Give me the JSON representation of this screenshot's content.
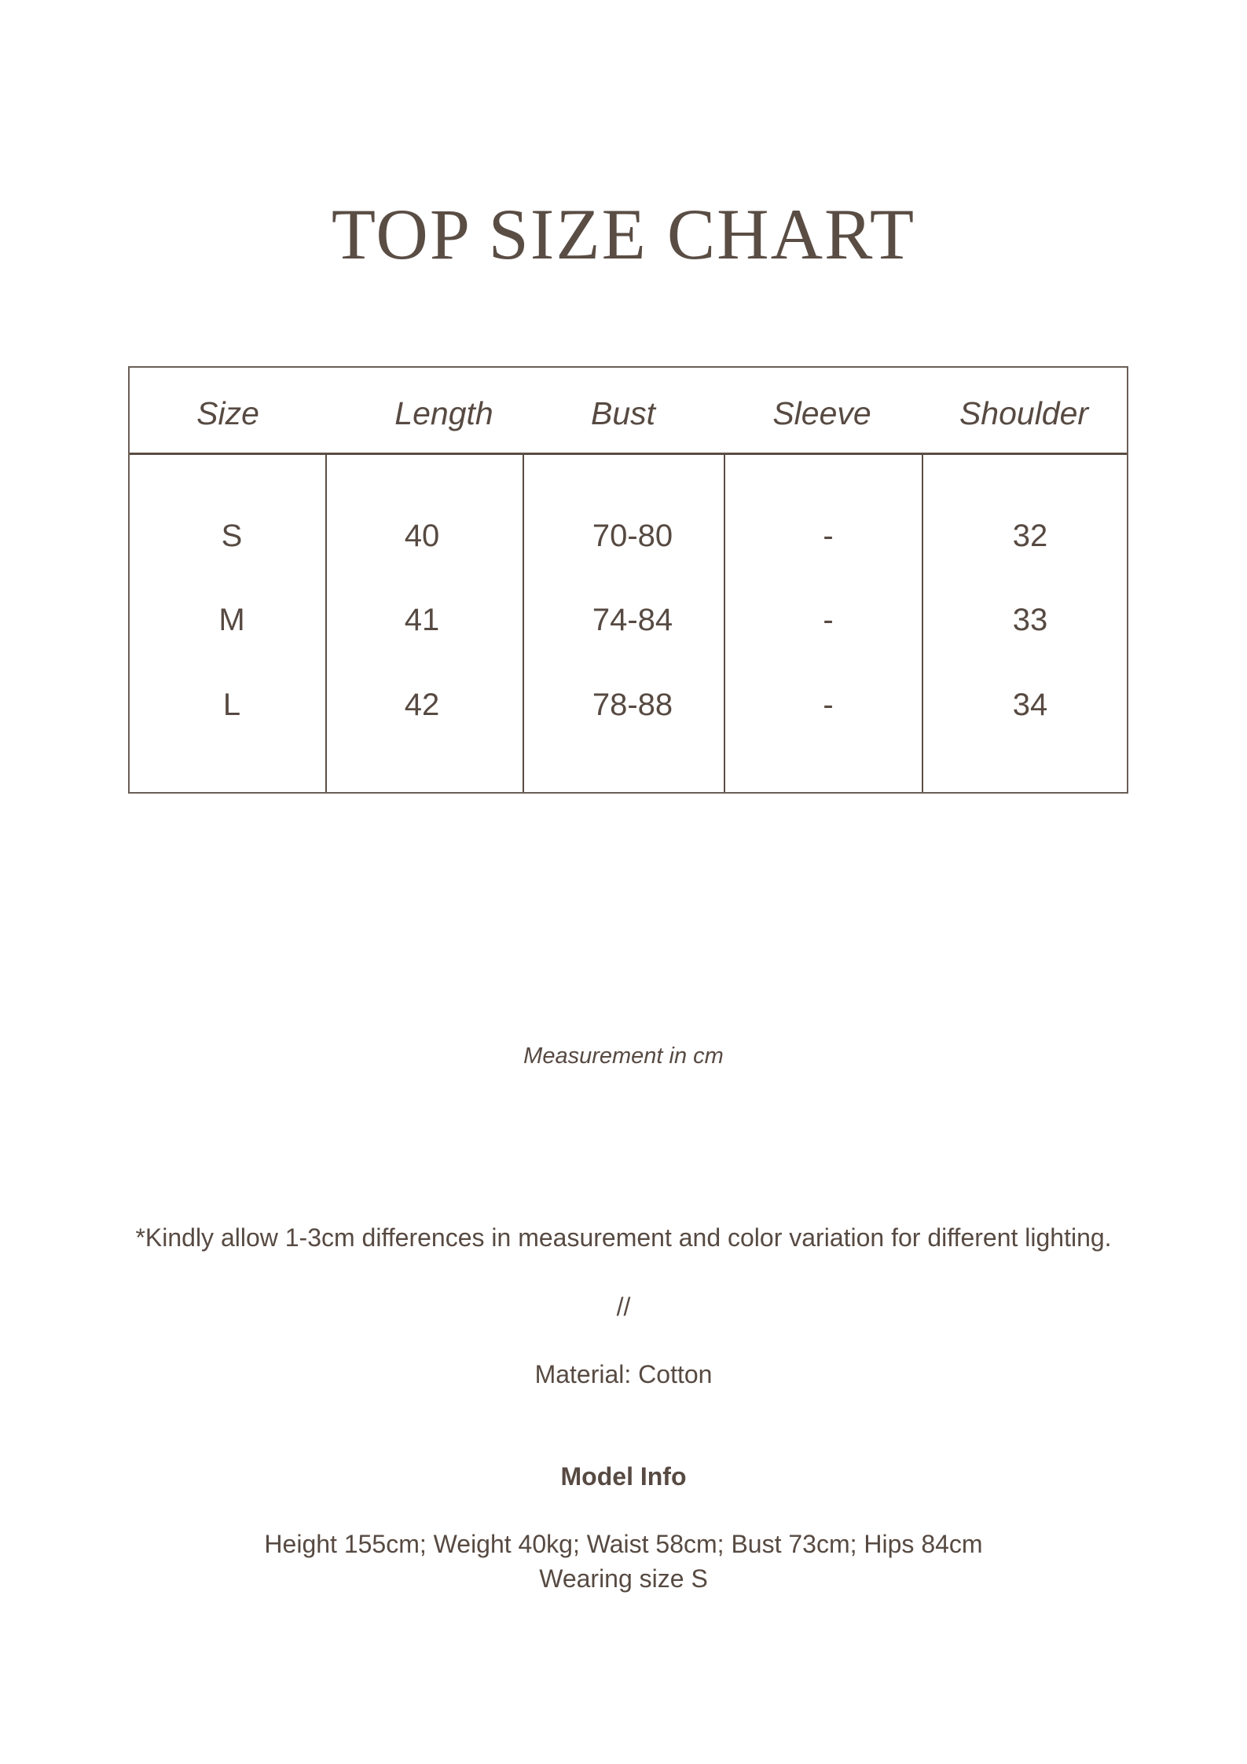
{
  "title": "TOP SIZE CHART",
  "table": {
    "headers": [
      "Size",
      "Length",
      "Bust",
      "Sleeve",
      "Shoulder"
    ],
    "rows": [
      [
        "S",
        "40",
        "70-80",
        "-",
        "32"
      ],
      [
        "M",
        "41",
        "74-84",
        "-",
        "33"
      ],
      [
        "L",
        "42",
        "78-88",
        "-",
        "34"
      ]
    ]
  },
  "unit_note": "Measurement in cm",
  "disclaimer": "*Kindly allow 1-3cm differences in measurement and color variation for different lighting.",
  "separator": "//",
  "material": "Material: Cotton",
  "model_info": {
    "heading": "Model Info",
    "measurements": "Height 155cm; Weight 40kg; Waist 58cm; Bust 73cm; Hips 84cm",
    "wearing": "Wearing size S"
  },
  "colors": {
    "text": "#574a42",
    "border": "#5a4d44"
  }
}
